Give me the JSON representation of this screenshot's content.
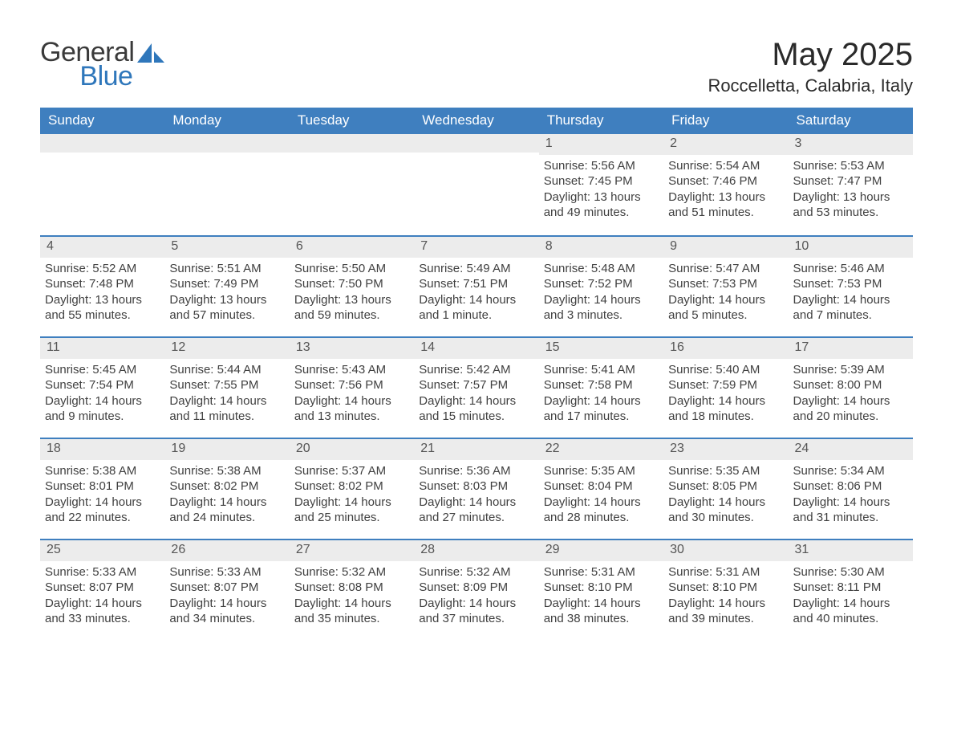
{
  "logo": {
    "word1": "General",
    "word2": "Blue",
    "text_color": "#3a3a3a",
    "accent_color": "#2f77bb"
  },
  "title": "May 2025",
  "location": "Roccelletta, Calabria, Italy",
  "colors": {
    "header_bg": "#3f7fbf",
    "header_text": "#ffffff",
    "daynum_bg": "#ececec",
    "border": "#3f7fbf",
    "body_text": "#404040",
    "page_bg": "#ffffff"
  },
  "dow": [
    "Sunday",
    "Monday",
    "Tuesday",
    "Wednesday",
    "Thursday",
    "Friday",
    "Saturday"
  ],
  "labels": {
    "sunrise": "Sunrise",
    "sunset": "Sunset",
    "daylight": "Daylight"
  },
  "weeks": [
    [
      null,
      null,
      null,
      null,
      {
        "n": "1",
        "sunrise": "5:56 AM",
        "sunset": "7:45 PM",
        "daylight": "13 hours and 49 minutes."
      },
      {
        "n": "2",
        "sunrise": "5:54 AM",
        "sunset": "7:46 PM",
        "daylight": "13 hours and 51 minutes."
      },
      {
        "n": "3",
        "sunrise": "5:53 AM",
        "sunset": "7:47 PM",
        "daylight": "13 hours and 53 minutes."
      }
    ],
    [
      {
        "n": "4",
        "sunrise": "5:52 AM",
        "sunset": "7:48 PM",
        "daylight": "13 hours and 55 minutes."
      },
      {
        "n": "5",
        "sunrise": "5:51 AM",
        "sunset": "7:49 PM",
        "daylight": "13 hours and 57 minutes."
      },
      {
        "n": "6",
        "sunrise": "5:50 AM",
        "sunset": "7:50 PM",
        "daylight": "13 hours and 59 minutes."
      },
      {
        "n": "7",
        "sunrise": "5:49 AM",
        "sunset": "7:51 PM",
        "daylight": "14 hours and 1 minute."
      },
      {
        "n": "8",
        "sunrise": "5:48 AM",
        "sunset": "7:52 PM",
        "daylight": "14 hours and 3 minutes."
      },
      {
        "n": "9",
        "sunrise": "5:47 AM",
        "sunset": "7:53 PM",
        "daylight": "14 hours and 5 minutes."
      },
      {
        "n": "10",
        "sunrise": "5:46 AM",
        "sunset": "7:53 PM",
        "daylight": "14 hours and 7 minutes."
      }
    ],
    [
      {
        "n": "11",
        "sunrise": "5:45 AM",
        "sunset": "7:54 PM",
        "daylight": "14 hours and 9 minutes."
      },
      {
        "n": "12",
        "sunrise": "5:44 AM",
        "sunset": "7:55 PM",
        "daylight": "14 hours and 11 minutes."
      },
      {
        "n": "13",
        "sunrise": "5:43 AM",
        "sunset": "7:56 PM",
        "daylight": "14 hours and 13 minutes."
      },
      {
        "n": "14",
        "sunrise": "5:42 AM",
        "sunset": "7:57 PM",
        "daylight": "14 hours and 15 minutes."
      },
      {
        "n": "15",
        "sunrise": "5:41 AM",
        "sunset": "7:58 PM",
        "daylight": "14 hours and 17 minutes."
      },
      {
        "n": "16",
        "sunrise": "5:40 AM",
        "sunset": "7:59 PM",
        "daylight": "14 hours and 18 minutes."
      },
      {
        "n": "17",
        "sunrise": "5:39 AM",
        "sunset": "8:00 PM",
        "daylight": "14 hours and 20 minutes."
      }
    ],
    [
      {
        "n": "18",
        "sunrise": "5:38 AM",
        "sunset": "8:01 PM",
        "daylight": "14 hours and 22 minutes."
      },
      {
        "n": "19",
        "sunrise": "5:38 AM",
        "sunset": "8:02 PM",
        "daylight": "14 hours and 24 minutes."
      },
      {
        "n": "20",
        "sunrise": "5:37 AM",
        "sunset": "8:02 PM",
        "daylight": "14 hours and 25 minutes."
      },
      {
        "n": "21",
        "sunrise": "5:36 AM",
        "sunset": "8:03 PM",
        "daylight": "14 hours and 27 minutes."
      },
      {
        "n": "22",
        "sunrise": "5:35 AM",
        "sunset": "8:04 PM",
        "daylight": "14 hours and 28 minutes."
      },
      {
        "n": "23",
        "sunrise": "5:35 AM",
        "sunset": "8:05 PM",
        "daylight": "14 hours and 30 minutes."
      },
      {
        "n": "24",
        "sunrise": "5:34 AM",
        "sunset": "8:06 PM",
        "daylight": "14 hours and 31 minutes."
      }
    ],
    [
      {
        "n": "25",
        "sunrise": "5:33 AM",
        "sunset": "8:07 PM",
        "daylight": "14 hours and 33 minutes."
      },
      {
        "n": "26",
        "sunrise": "5:33 AM",
        "sunset": "8:07 PM",
        "daylight": "14 hours and 34 minutes."
      },
      {
        "n": "27",
        "sunrise": "5:32 AM",
        "sunset": "8:08 PM",
        "daylight": "14 hours and 35 minutes."
      },
      {
        "n": "28",
        "sunrise": "5:32 AM",
        "sunset": "8:09 PM",
        "daylight": "14 hours and 37 minutes."
      },
      {
        "n": "29",
        "sunrise": "5:31 AM",
        "sunset": "8:10 PM",
        "daylight": "14 hours and 38 minutes."
      },
      {
        "n": "30",
        "sunrise": "5:31 AM",
        "sunset": "8:10 PM",
        "daylight": "14 hours and 39 minutes."
      },
      {
        "n": "31",
        "sunrise": "5:30 AM",
        "sunset": "8:11 PM",
        "daylight": "14 hours and 40 minutes."
      }
    ]
  ]
}
